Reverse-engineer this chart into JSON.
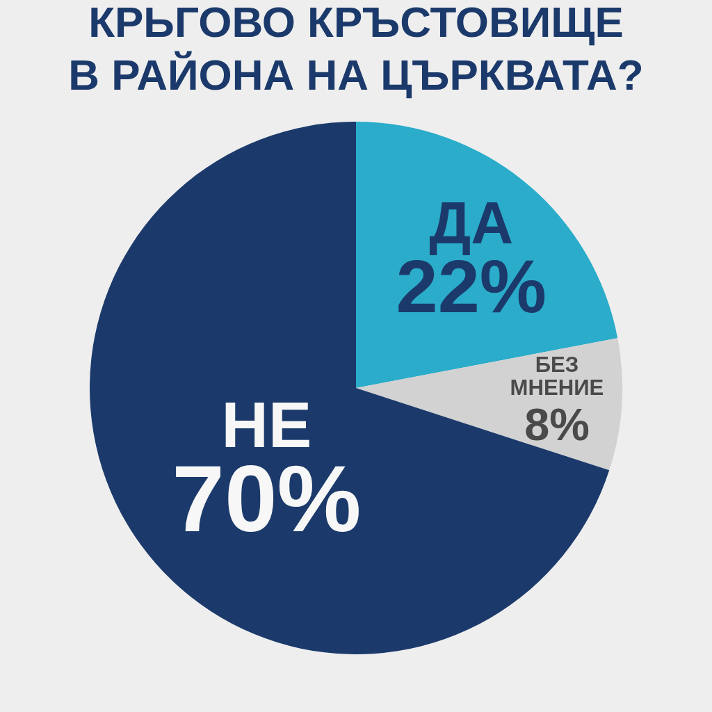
{
  "chart_data": {
    "type": "pie",
    "title": "КРЬГОВО КРЪСТОВИЩЕ В РАЙОНА НА ЦЪРКВАТА?",
    "categories": [
      "ДА",
      "БЕЗ МНЕНИЕ",
      "НЕ"
    ],
    "values": [
      22,
      8,
      70
    ],
    "colors": [
      "#2aacca",
      "#d2d2d2",
      "#1b3a6b"
    ],
    "value_labels": [
      "22%",
      "8%",
      "70%"
    ]
  }
}
